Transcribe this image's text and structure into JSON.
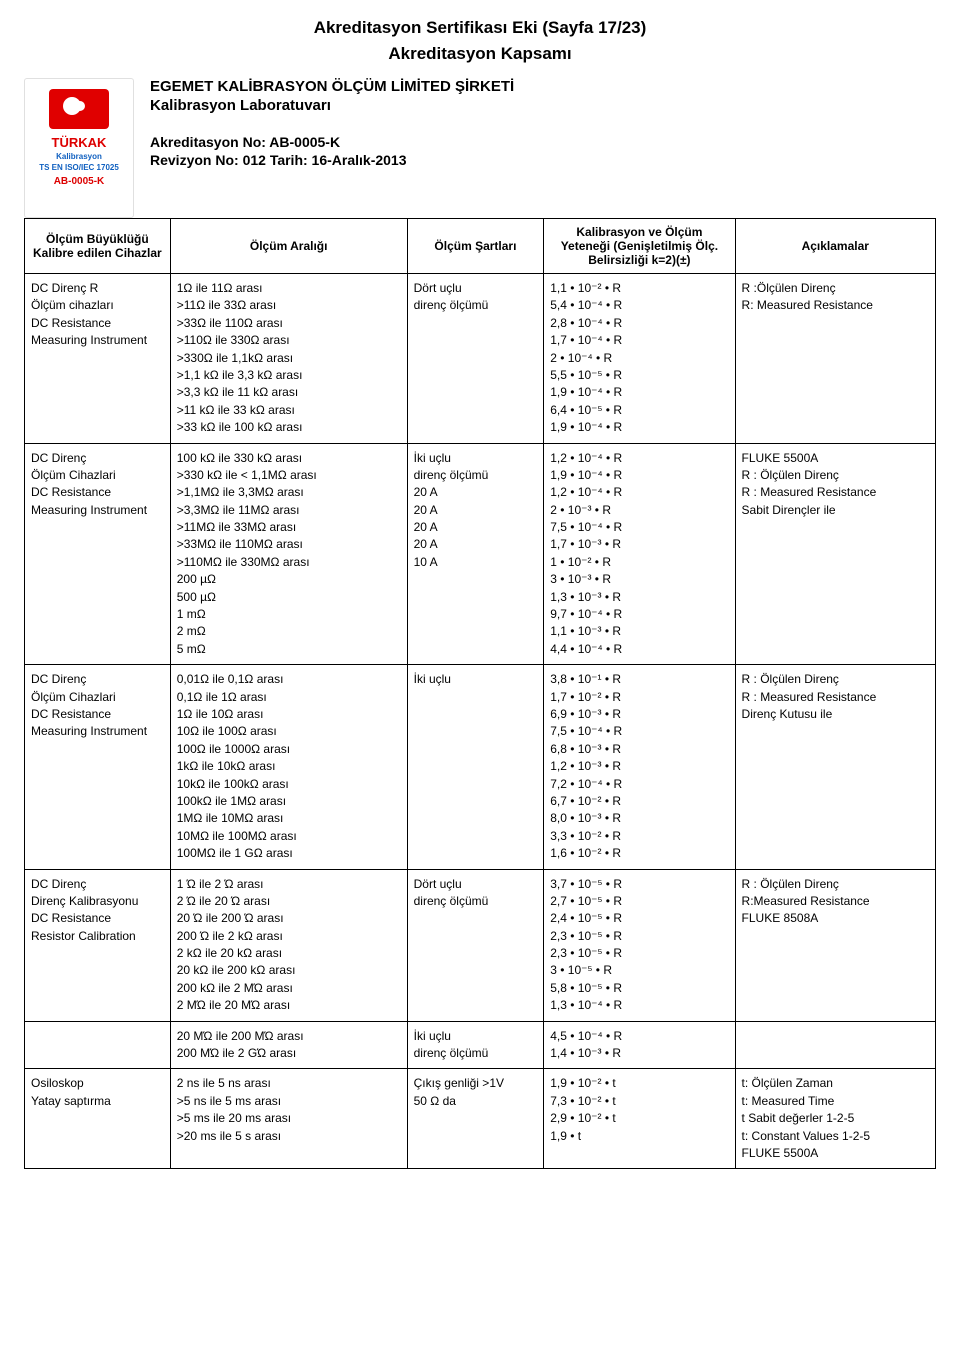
{
  "doc": {
    "title": "Akreditasyon Sertifikası Eki (Sayfa 17/23)",
    "subtitle": "Akreditasyon Kapsamı",
    "org_line1": "EGEMET KALİBRASYON ÖLÇÜM LİMİTED ŞİRKETİ",
    "org_line2": "Kalibrasyon Laboratuvarı",
    "accr_no": "Akreditasyon No: AB-0005-K",
    "revision": "Revizyon No: 012 Tarih: 16-Aralık-2013"
  },
  "logo": {
    "top": "",
    "brand": "TÜRKAK",
    "sub": "Kalibrasyon",
    "iso": "TS EN ISO/IEC 17025",
    "code": "AB-0005-K"
  },
  "table": {
    "headers": {
      "c1": "Ölçüm Büyüklüğü Kalibre edilen Cihazlar",
      "c2": "Ölçüm Aralığı",
      "c3": "Ölçüm Şartları",
      "c4": "Kalibrasyon ve Ölçüm Yeteneği (Genişletilmiş Ölç. Belirsizliği k=2)(±)",
      "c5": "Açıklamalar"
    },
    "rows": [
      {
        "c1": [
          "DC Direnç R",
          "Ölçüm cihazları",
          "",
          "DC Resistance",
          "Measuring Instrument"
        ],
        "c2": [
          "1Ω ile 11Ω arası",
          ">11Ω ile 33Ω arası",
          ">33Ω ile 110Ω arası",
          ">110Ω ile 330Ω arası",
          ">330Ω ile 1,1kΩ arası",
          ">1,1 kΩ ile 3,3 kΩ arası",
          ">3,3 kΩ ile 11 kΩ arası",
          ">11 kΩ ile 33 kΩ arası",
          ">33 kΩ ile 100 kΩ arası"
        ],
        "c3": [
          "Dört uçlu",
          "direnç ölçümü"
        ],
        "c4": [
          "1,1 • 10⁻² • R",
          "5,4 • 10⁻⁴ • R",
          "2,8 • 10⁻⁴ • R",
          "1,7 • 10⁻⁴ • R",
          "2 • 10⁻⁴ • R",
          "5,5 • 10⁻⁵ • R",
          "1,9 • 10⁻⁴ • R",
          "6,4 • 10⁻⁵ • R",
          "1,9 • 10⁻⁴ • R"
        ],
        "c5": [
          "",
          "",
          "",
          "",
          "",
          "",
          "",
          "R :Ölçülen Direnç",
          "R: Measured Resistance"
        ]
      },
      {
        "c1": [
          "",
          "",
          "",
          "",
          "",
          "",
          "",
          "DC Direnç",
          "Ölçüm Cihazlari",
          "",
          "DC Resistance",
          "Measuring Instrument"
        ],
        "c2": [
          "100 kΩ ile 330 kΩ arası",
          ">330 kΩ ile < 1,1MΩ arası",
          ">1,1MΩ ile 3,3MΩ arası",
          ">3,3MΩ ile 11MΩ arası",
          ">11MΩ ile 33MΩ arası",
          ">33MΩ ile 110MΩ arası",
          ">110MΩ ile 330MΩ arası",
          "200 µΩ",
          "500 µΩ",
          "1 mΩ",
          "2 mΩ",
          "5 mΩ"
        ],
        "c3": [
          "",
          "",
          "",
          "İki uçlu",
          "direnç ölçümü",
          "",
          "",
          "20 A",
          "20 A",
          "20 A",
          "20 A",
          "10 A"
        ],
        "c4": [
          "1,2 • 10⁻⁴ • R",
          "1,9 • 10⁻⁴ • R",
          "1,2 • 10⁻⁴ • R",
          "2 • 10⁻³ • R",
          "7,5 • 10⁻⁴ • R",
          "1,7 • 10⁻³ • R",
          "1 • 10⁻² • R",
          "3 • 10⁻³ • R",
          "1,3 • 10⁻³ • R",
          "9,7 • 10⁻⁴ • R",
          "1,1 • 10⁻³ • R",
          "4,4 • 10⁻⁴ • R"
        ],
        "c5": [
          "FLUKE 5500A",
          "",
          "",
          "",
          "",
          "",
          "",
          "R : Ölçülen Direnç",
          "R : Measured Resistance",
          "",
          "Sabit Dirençler ile",
          ""
        ]
      },
      {
        "c1": [
          "DC Direnç",
          "Ölçüm Cihazlari",
          "",
          "DC Resistance",
          "Measuring Instrument"
        ],
        "c2": [
          "0,01Ω ile 0,1Ω arası",
          "0,1Ω ile 1Ω arası",
          "1Ω ile 10Ω arası",
          "10Ω ile 100Ω arası",
          "100Ω ile 1000Ω arası",
          "1kΩ ile 10kΩ arası",
          "10kΩ ile 100kΩ arası",
          "100kΩ ile 1MΩ arası",
          "1MΩ ile 10MΩ arası",
          "10MΩ ile 100MΩ arası",
          "100MΩ ile 1 GΩ arası"
        ],
        "c3": [
          "",
          "İki uçlu"
        ],
        "c4": [
          "3,8 • 10⁻¹ • R",
          "1,7 • 10⁻² • R",
          "6,9 • 10⁻³ • R",
          "7,5 • 10⁻⁴ • R",
          "6,8 • 10⁻³ • R",
          "1,2 • 10⁻³ • R",
          "7,2 • 10⁻⁴ • R",
          "6,7 • 10⁻² • R",
          "8,0 • 10⁻³ • R",
          "3,3 • 10⁻² • R",
          "1,6 • 10⁻² • R"
        ],
        "c5": [
          "R : Ölçülen Direnç",
          "R : Measured Resistance",
          "",
          "Direnç Kutusu ile"
        ]
      },
      {
        "c1": [
          "DC Direnç",
          "Direnç Kalibrasyonu",
          "",
          "DC Resistance",
          "Resistor Calibration"
        ],
        "c2": [
          "1 Ώ ile 2 Ώ arası",
          "2 Ώ ile 20 Ώ arası",
          "20 Ώ ile 200 Ώ arası",
          "200 Ώ ile 2 kΩ arası",
          "2 kΩ ile 20 kΩ arası",
          "20 kΩ ile 200 kΩ arası",
          "200 kΩ ile 2 MΏ arası",
          "2 MΏ ile 20 MΏ arası"
        ],
        "c3": [
          "",
          "",
          "",
          "Dört uçlu",
          "direnç ölçümü"
        ],
        "c4": [
          "3,7 • 10⁻⁵ • R",
          "2,7 • 10⁻⁵ • R",
          "2,4 • 10⁻⁵ • R",
          "2,3 • 10⁻⁵ • R",
          "2,3 • 10⁻⁵ • R",
          "3 • 10⁻⁵ • R",
          "5,8 • 10⁻⁵ • R",
          "1,3 • 10⁻⁴ • R"
        ],
        "c5": [
          "",
          "",
          "",
          "R : Ölçülen Direnç",
          "R:Measured Resistance",
          "",
          "FLUKE 8508A"
        ]
      },
      {
        "c1": [],
        "c2": [
          "20 MΏ ile 200 MΏ arası",
          "200 MΏ ile 2 GΏ arası"
        ],
        "c3": [
          "İki uçlu",
          "direnç ölçümü"
        ],
        "c4": [
          "4,5 • 10⁻⁴ • R",
          "1,4 • 10⁻³ • R"
        ],
        "c5": []
      },
      {
        "c1": [
          "Osiloskop",
          "Yatay saptırma"
        ],
        "c2": [
          "2 ns ile 5 ns arası",
          ">5 ns ile 5 ms arası",
          ">5 ms ile 20 ms arası",
          ">20 ms ile 5 s arası"
        ],
        "c3": [
          "Çıkış genliği >1V",
          "",
          "50 Ω da"
        ],
        "c4": [
          "1,9 • 10⁻² • t",
          "7,3 • 10⁻² • t",
          "2,9 • 10⁻² • t",
          "1,9 • t"
        ],
        "c5": [
          "t: Ölçülen Zaman",
          "t: Measured Time",
          "t Sabit değerler 1-2-5",
          "t: Constant Values 1-2-5",
          "FLUKE 5500A"
        ]
      }
    ]
  }
}
